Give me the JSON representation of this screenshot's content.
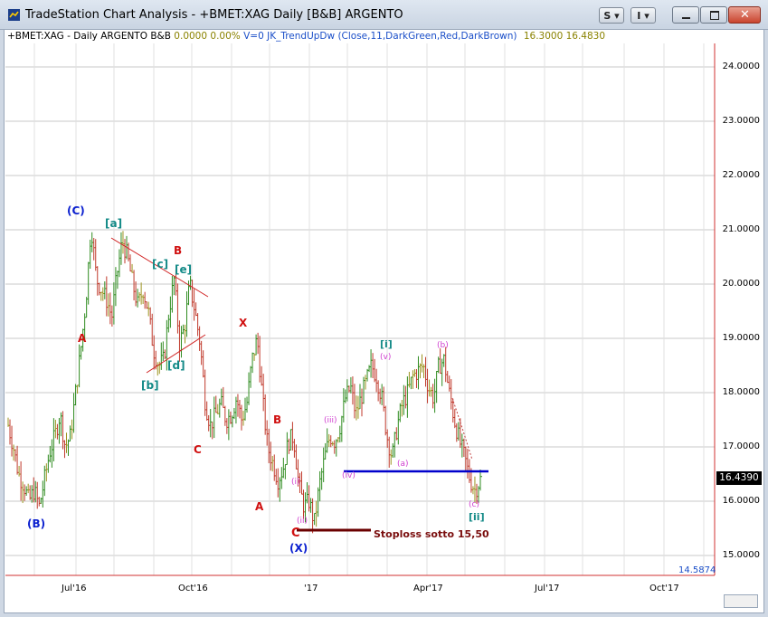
{
  "window": {
    "title": "TradeStation Chart Analysis - +BMET:XAG Daily [B&B] ARGENTO",
    "s_button_label": "S",
    "i_button_label": "I",
    "minimize_icon": "minimize-icon",
    "restore_icon": "restore-icon",
    "close_icon": "close-icon"
  },
  "header": {
    "symbol": "+BMET:XAG - Daily",
    "name": "ARGENTO",
    "exchange": "B&B",
    "change": "0.0000",
    "change_pct": "0.00%",
    "volume": "V=0",
    "indicator": "JK_TrendUpDw (Close,11,DarkGreen,Red,DarkBrown)",
    "val1": "16.3000",
    "val2": "16.4830"
  },
  "price_axis": {
    "labels": [
      "24.0000",
      "23.0000",
      "22.0000",
      "21.0000",
      "20.0000",
      "19.0000",
      "18.0000",
      "17.0000",
      "16.0000",
      "15.0000"
    ],
    "last_price": "16.4390",
    "low_price": "14.5874"
  },
  "time_axis": {
    "labels": [
      "Jul'16",
      "Oct'16",
      "'17",
      "Apr'17",
      "Jul'17",
      "Oct'17"
    ]
  },
  "colors": {
    "up_bar": "#2e8b1f",
    "down_bar": "#c0392b",
    "flat_bar": "#9c9420",
    "grid": "#c8c8c8",
    "axis_line": "#d23030",
    "support": "#0000cc",
    "stoploss": "#6b0000"
  },
  "annotations": {
    "C_big": "(C)",
    "B_big": "(B)",
    "X_big": "(X)",
    "a_sq": "[a]",
    "b_sq": "[b]",
    "c_sq": "[c]",
    "d_sq": "[d]",
    "e_sq": "[e]",
    "B_red": "B",
    "A_red1": "A",
    "C_red1": "C",
    "X_red": "X",
    "B_red2": "B",
    "A_red2": "A",
    "C_red2": "C",
    "i_sq": "[i]",
    "ii_sq": "[ii]",
    "v_small": "(v)",
    "iii_small": "(iii)",
    "iv_small": "(iv)",
    "i_small": "(i)",
    "ii_small": "(ii)",
    "a_small": "(a)",
    "b_small": "(b)",
    "c_small": "(c)",
    "stoploss": "Stoploss  sotto 15,50"
  },
  "chart_data": {
    "type": "bar",
    "title": "+BMET:XAG - Daily",
    "ylim": [
      14.6,
      24.6
    ],
    "x_ticks": [
      "Jul'16",
      "Oct'16",
      "'17",
      "Apr'17",
      "Jul'17",
      "Oct'17"
    ],
    "y_ticks": [
      24,
      23,
      22,
      21,
      20,
      19,
      18,
      17,
      16,
      15
    ],
    "series": [
      {
        "values": [
          17.4,
          17.0,
          16.5,
          16.3,
          16.0,
          16.2,
          15.9,
          16.4,
          16.9,
          17.2,
          17.6,
          17.0,
          17.2,
          18.0,
          18.8,
          19.7,
          21.1,
          20.1,
          19.9,
          19.7,
          19.4,
          20.2,
          20.8,
          20.5,
          20.0,
          19.6,
          19.9,
          19.5,
          18.8,
          18.5,
          18.6,
          19.5,
          20.1,
          18.9,
          19.2,
          20.0,
          19.5,
          18.9,
          17.8,
          17.4,
          17.6,
          17.8,
          17.5,
          17.6,
          17.9,
          17.5,
          17.8,
          18.6,
          19.0,
          17.9,
          17.0,
          16.7,
          16.4,
          16.6,
          17.1,
          17.2,
          16.3,
          15.9,
          16.0,
          15.6,
          16.3,
          16.8,
          17.2,
          17.1,
          17.4,
          17.9,
          18.1,
          17.6,
          17.9,
          18.2,
          18.5,
          18.3,
          17.9,
          17.2,
          16.8,
          17.4,
          17.8,
          18.0,
          18.3,
          18.4,
          18.5,
          18.1,
          17.9,
          18.5,
          18.6,
          18.0,
          17.5,
          17.1,
          16.8,
          16.4,
          16.2,
          16.4
        ],
        "note_x": "daily bars from mid-Apr'16 to mid-May'17"
      }
    ],
    "support_level": 16.6,
    "stoploss_level": 15.5
  }
}
